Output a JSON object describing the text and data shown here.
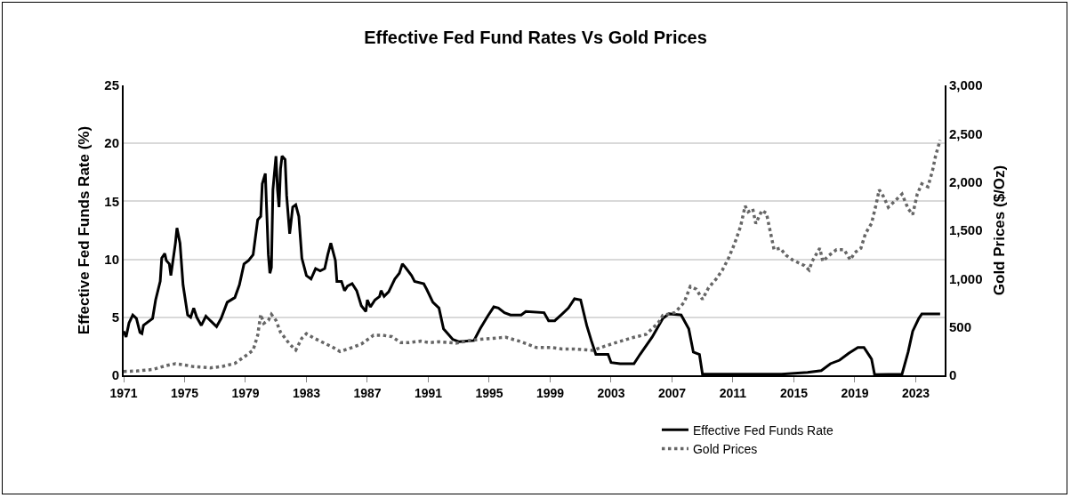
{
  "chart_data": {
    "type": "line",
    "title": "Effective Fed Fund Rates Vs Gold Prices",
    "ylabel": "Effective Fed Funds Rate (%)",
    "y2label": "Gold Prices ($/Oz)",
    "xlim": [
      1971,
      2024.9
    ],
    "xticks": [
      1971,
      1975,
      1979,
      1983,
      1987,
      1991,
      1995,
      1999,
      2003,
      2007,
      2011,
      2015,
      2019,
      2023
    ],
    "ylim": [
      0,
      25
    ],
    "yticks": [
      0,
      5,
      10,
      15,
      20,
      25
    ],
    "y2lim": [
      0,
      3000
    ],
    "y2ticks": [
      {
        "value": 0,
        "label": "0"
      },
      {
        "value": 500,
        "label": "500"
      },
      {
        "value": 1000,
        "label": "1,000"
      },
      {
        "value": 1500,
        "label": "1,500"
      },
      {
        "value": 2000,
        "label": "2,000"
      },
      {
        "value": 2500,
        "label": "2,500"
      },
      {
        "value": 3000,
        "label": "3,000"
      }
    ],
    "grid": "y",
    "legend": "bottom right",
    "marker": "none",
    "series": [
      {
        "name": "Effective Fed Funds Rate",
        "color": "#000000",
        "line_style": "solid",
        "x": [
          1971.0,
          1971.16,
          1971.35,
          1971.6,
          1971.84,
          1972.07,
          1972.2,
          1972.3,
          1972.9,
          1973.1,
          1973.4,
          1973.5,
          1973.7,
          1973.8,
          1974.0,
          1974.1,
          1974.4,
          1974.5,
          1974.7,
          1974.9,
          1975.2,
          1975.4,
          1975.6,
          1975.8,
          1976.1,
          1976.4,
          1976.7,
          1977.1,
          1977.4,
          1977.8,
          1978.3,
          1978.6,
          1978.9,
          1979.2,
          1979.5,
          1979.8,
          1980.0,
          1980.1,
          1980.3,
          1980.5,
          1980.6,
          1980.7,
          1980.8,
          1981.0,
          1981.1,
          1981.2,
          1981.3,
          1981.4,
          1981.6,
          1981.7,
          1981.9,
          1982.1,
          1982.3,
          1982.5,
          1982.7,
          1983.0,
          1983.3,
          1983.6,
          1983.9,
          1984.2,
          1984.4,
          1984.6,
          1984.9,
          1985.0,
          1985.3,
          1985.5,
          1985.7,
          1986.0,
          1986.3,
          1986.6,
          1986.9,
          1987.0,
          1987.2,
          1987.5,
          1987.8,
          1987.9,
          1988.1,
          1988.4,
          1988.8,
          1989.1,
          1989.3,
          1989.5,
          1989.9,
          1990.1,
          1990.7,
          1990.9,
          1991.3,
          1991.7,
          1992.0,
          1992.6,
          1993.0,
          1994.0,
          1994.4,
          1994.9,
          1995.3,
          1995.6,
          1996.0,
          1996.4,
          1997.1,
          1997.4,
          1998.6,
          1998.9,
          1999.3,
          1999.8,
          2000.2,
          2000.6,
          2001.0,
          2001.4,
          2001.7,
          2002.0,
          2002.8,
          2003.0,
          2003.6,
          2004.5,
          2004.9,
          2005.7,
          2006.4,
          2006.8,
          2007.6,
          2008.1,
          2008.4,
          2008.8,
          2009.0,
          2011.1,
          2014.2,
          2015.9,
          2016.8,
          2017.4,
          2018.0,
          2018.6,
          2019.2,
          2019.6,
          2020.0,
          2020.1,
          2020.3,
          2022.1,
          2022.5,
          2022.8,
          2023.2,
          2023.4,
          2024.6
        ],
        "values": [
          3.8,
          3.3,
          4.5,
          5.2,
          4.9,
          3.7,
          3.6,
          4.3,
          4.9,
          6.5,
          8.1,
          10.1,
          10.5,
          9.9,
          9.6,
          8.6,
          11.4,
          12.7,
          11.4,
          7.8,
          5.2,
          5.0,
          5.8,
          5.0,
          4.3,
          5.1,
          4.7,
          4.2,
          4.9,
          6.3,
          6.7,
          7.8,
          9.6,
          9.9,
          10.4,
          13.4,
          13.7,
          16.5,
          17.4,
          10.4,
          8.8,
          9.3,
          16.0,
          18.9,
          16.0,
          14.5,
          17.8,
          18.9,
          18.6,
          15.5,
          12.2,
          14.5,
          14.7,
          13.7,
          10.1,
          8.6,
          8.3,
          9.2,
          9.0,
          9.2,
          10.4,
          11.4,
          9.9,
          8.1,
          8.1,
          7.3,
          7.7,
          7.9,
          7.3,
          6.0,
          5.5,
          6.5,
          5.9,
          6.5,
          6.8,
          7.3,
          6.8,
          7.2,
          8.3,
          8.8,
          9.6,
          9.3,
          8.6,
          8.1,
          7.9,
          7.4,
          6.3,
          5.8,
          4.0,
          3.1,
          2.9,
          3.0,
          4.0,
          5.1,
          5.9,
          5.8,
          5.4,
          5.2,
          5.2,
          5.5,
          5.4,
          4.7,
          4.7,
          5.3,
          5.8,
          6.6,
          6.5,
          4.3,
          3.0,
          1.8,
          1.8,
          1.1,
          1.0,
          1.0,
          1.8,
          3.3,
          4.9,
          5.3,
          5.2,
          4.0,
          2.0,
          1.8,
          0.1,
          0.1,
          0.1,
          0.25,
          0.4,
          1.0,
          1.3,
          1.9,
          2.4,
          2.4,
          1.6,
          1.4,
          0.05,
          0.1,
          2.0,
          3.8,
          4.9,
          5.3,
          5.3
        ]
      },
      {
        "name": "Gold Prices",
        "color": "#666666",
        "line_style": "dotted",
        "axis": "y2",
        "x": [
          1971.0,
          1971.9,
          1972.9,
          1973.8,
          1974.4,
          1975.0,
          1975.5,
          1976.7,
          1977.5,
          1978.3,
          1979.0,
          1979.5,
          1979.8,
          1980.0,
          1980.2,
          1980.5,
          1980.7,
          1981.0,
          1981.3,
          1981.6,
          1981.9,
          1982.3,
          1982.7,
          1983.0,
          1983.5,
          1984.1,
          1984.7,
          1985.2,
          1985.8,
          1986.6,
          1987.4,
          1988.0,
          1988.6,
          1989.2,
          1989.7,
          1990.5,
          1991.1,
          1991.7,
          1992.8,
          1993.8,
          1994.8,
          1996.1,
          1997.1,
          1998.1,
          1999.1,
          1999.8,
          2000.6,
          2001.8,
          2002.6,
          2003.5,
          2004.5,
          2005.3,
          2006.1,
          2006.4,
          2007.2,
          2007.8,
          2008.2,
          2008.6,
          2009.0,
          2009.4,
          2009.9,
          2010.3,
          2010.7,
          2011.1,
          2011.5,
          2011.8,
          2012.0,
          2012.3,
          2012.5,
          2012.9,
          2013.2,
          2013.5,
          2013.7,
          2014.1,
          2014.5,
          2014.9,
          2015.3,
          2015.7,
          2016.0,
          2016.2,
          2016.7,
          2016.9,
          2017.3,
          2017.8,
          2018.3,
          2018.7,
          2019.0,
          2019.4,
          2019.7,
          2020.1,
          2020.4,
          2020.6,
          2020.9,
          2021.2,
          2021.6,
          2022.1,
          2022.5,
          2022.8,
          2023.1,
          2023.4,
          2023.8,
          2024.1,
          2024.3,
          2024.6
        ],
        "values": [
          40,
          45,
          60,
          100,
          120,
          107,
          92,
          77,
          92,
          123,
          200,
          260,
          414,
          630,
          537,
          568,
          630,
          568,
          445,
          384,
          322,
          261,
          384,
          430,
          384,
          338,
          292,
          246,
          276,
          322,
          414,
          414,
          400,
          338,
          338,
          353,
          338,
          347,
          332,
          362,
          378,
          393,
          347,
          287,
          287,
          272,
          272,
          257,
          302,
          347,
          393,
          423,
          544,
          620,
          650,
          755,
          920,
          890,
          785,
          906,
          997,
          1087,
          1208,
          1359,
          1540,
          1752,
          1691,
          1721,
          1570,
          1706,
          1676,
          1450,
          1299,
          1315,
          1240,
          1195,
          1164,
          1134,
          1089,
          1179,
          1315,
          1179,
          1240,
          1300,
          1300,
          1195,
          1270,
          1315,
          1467,
          1572,
          1769,
          1920,
          1845,
          1739,
          1799,
          1875,
          1724,
          1663,
          1875,
          1981,
          1950,
          2117,
          2268,
          2434
        ]
      }
    ]
  }
}
